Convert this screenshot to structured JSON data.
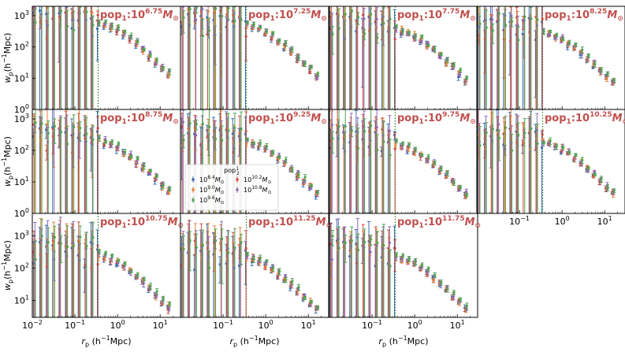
{
  "figure": {
    "xlabel_base": "r",
    "xlabel_sub": "p",
    "xlabel_unit": "(h",
    "xlabel_unit_exp": "−1",
    "xlabel_unit_end": "Mpc)",
    "ylabel_base": "w",
    "ylabel_sub": "p",
    "ylabel_unit": "(h",
    "ylabel_unit_exp": "−1",
    "ylabel_unit_end": "Mpc)",
    "xticks": [
      {
        "base": "10",
        "exp": "−2",
        "value": 0.01
      },
      {
        "base": "10",
        "exp": "−1",
        "value": 0.1
      },
      {
        "base": "10",
        "exp": "0",
        "value": 1
      },
      {
        "base": "10",
        "exp": "1",
        "value": 10
      }
    ],
    "yticks": [
      {
        "base": "10",
        "exp": "0",
        "value": 1
      },
      {
        "base": "10",
        "exp": "1",
        "value": 10
      },
      {
        "base": "10",
        "exp": "2",
        "value": 100
      },
      {
        "base": "10",
        "exp": "3",
        "value": 1000
      }
    ],
    "title_color": "#c0504d",
    "vline_color": "#2a7a2a",
    "vline_x": 0.35
  },
  "legend": {
    "title_base": "pop",
    "title_sub": "2",
    "title_sup": "1",
    "entries": [
      {
        "base": "10",
        "exp": "8.4",
        "unit": "M",
        "unit_sub": "⊙",
        "color": "#3a6fb0"
      },
      {
        "base": "10",
        "exp": "10.2",
        "unit": "M",
        "unit_sub": "⊙",
        "color": "#c94a3d"
      },
      {
        "base": "10",
        "exp": "9.0",
        "unit": "M",
        "unit_sub": "⊙",
        "color": "#e0833a"
      },
      {
        "base": "10",
        "exp": "10.8",
        "unit": "M",
        "unit_sub": "⊙",
        "color": "#8a6ab4"
      },
      {
        "base": "10",
        "exp": "9.6",
        "unit": "M",
        "unit_sub": "⊙",
        "color": "#4ca44c"
      }
    ]
  },
  "chart_data": [
    {
      "type": "scatter",
      "title_base": "pop",
      "title_sub": "1",
      "title_num": "10",
      "title_exp": "6.75",
      "title_unit": "M",
      "title_unit_sub": "⊙",
      "xlim": [
        0.01,
        30
      ],
      "ylim": [
        1,
        2000
      ],
      "log_x": true,
      "log_y": true,
      "grid": false
    },
    {
      "type": "scatter",
      "title_base": "pop",
      "title_sub": "1",
      "title_num": "10",
      "title_exp": "7.25",
      "title_unit": "M",
      "title_unit_sub": "⊙",
      "xlim": [
        0.01,
        30
      ],
      "ylim": [
        1,
        2000
      ],
      "log_x": true,
      "log_y": true,
      "grid": false
    },
    {
      "type": "scatter",
      "title_base": "pop",
      "title_sub": "1",
      "title_num": "10",
      "title_exp": "7.75",
      "title_unit": "M",
      "title_unit_sub": "⊙",
      "xlim": [
        0.01,
        30
      ],
      "ylim": [
        1,
        2000
      ],
      "log_x": true,
      "log_y": true,
      "grid": false
    },
    {
      "type": "scatter",
      "title_base": "pop",
      "title_sub": "1",
      "title_num": "10",
      "title_exp": "8.25",
      "title_unit": "M",
      "title_unit_sub": "⊙",
      "xlim": [
        0.01,
        30
      ],
      "ylim": [
        1,
        2000
      ],
      "log_x": true,
      "log_y": true,
      "grid": false
    },
    {
      "type": "scatter",
      "title_base": "pop",
      "title_sub": "1",
      "title_num": "10",
      "title_exp": "8.75",
      "title_unit": "M",
      "title_unit_sub": "⊙",
      "xlim": [
        0.01,
        30
      ],
      "ylim": [
        1,
        2000
      ],
      "log_x": true,
      "log_y": true,
      "grid": false
    },
    {
      "type": "scatter",
      "title_base": "pop",
      "title_sub": "1",
      "title_num": "10",
      "title_exp": "9.25",
      "title_unit": "M",
      "title_unit_sub": "⊙",
      "xlim": [
        0.01,
        30
      ],
      "ylim": [
        1,
        2000
      ],
      "log_x": true,
      "log_y": true,
      "grid": false
    },
    {
      "type": "scatter",
      "title_base": "pop",
      "title_sub": "1",
      "title_num": "10",
      "title_exp": "9.75",
      "title_unit": "M",
      "title_unit_sub": "⊙",
      "xlim": [
        0.01,
        30
      ],
      "ylim": [
        1,
        2000
      ],
      "log_x": true,
      "log_y": true,
      "grid": false
    },
    {
      "type": "scatter",
      "title_base": "pop",
      "title_sub": "1",
      "title_num": "10",
      "title_exp": "10.25",
      "title_unit": "M",
      "title_unit_sub": "⊙",
      "xlim": [
        0.01,
        30
      ],
      "ylim": [
        1,
        2000
      ],
      "log_x": true,
      "log_y": true,
      "grid": false
    },
    {
      "type": "scatter",
      "title_base": "pop",
      "title_sub": "1",
      "title_num": "10",
      "title_exp": "10.75",
      "title_unit": "M",
      "title_unit_sub": "⊙",
      "xlim": [
        0.01,
        30
      ],
      "ylim": [
        3,
        5000
      ],
      "log_x": true,
      "log_y": true,
      "grid": false
    },
    {
      "type": "scatter",
      "title_base": "pop",
      "title_sub": "1",
      "title_num": "10",
      "title_exp": "11.25",
      "title_unit": "M",
      "title_unit_sub": "⊙",
      "xlim": [
        0.01,
        30
      ],
      "ylim": [
        3,
        5000
      ],
      "log_x": true,
      "log_y": true,
      "grid": false
    },
    {
      "type": "scatter",
      "title_base": "pop",
      "title_sub": "1",
      "title_num": "10",
      "title_exp": "11.75",
      "title_unit": "M",
      "title_unit_sub": "⊙",
      "xlim": [
        0.01,
        30
      ],
      "ylim": [
        3,
        5000
      ],
      "log_x": true,
      "log_y": true,
      "grid": false
    }
  ]
}
